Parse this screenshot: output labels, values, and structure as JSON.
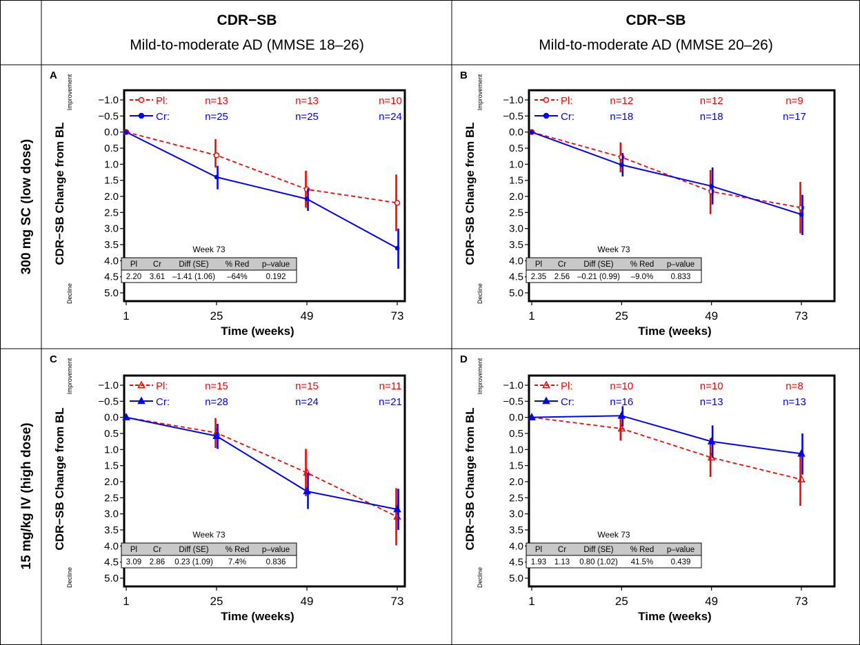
{
  "column_headers": [
    {
      "title": "CDR−SB",
      "subtitle": "Mild-to-moderate AD (MMSE 18–26)"
    },
    {
      "title": "CDR−SB",
      "subtitle": "Mild-to-moderate AD (MMSE 20–26)"
    }
  ],
  "row_headers": [
    "300 mg SC (low dose)",
    "15 mg/kg IV (high dose)"
  ],
  "colors": {
    "placebo": "#ff0000",
    "crenezumab": "#0000ff",
    "table_header_bg": "#c8c8c8"
  },
  "chart_data": [
    {
      "panel": "A",
      "type": "line",
      "ylabel": "CDR−SB Change from BL",
      "xlabel": "Time (weeks)",
      "improvement_label": "Improvement",
      "decline_label": "Decline",
      "y_reversed": true,
      "ylim": [
        -1.0,
        5.0
      ],
      "yticks": [
        "−1.0",
        "−0.5",
        "0.0",
        "0.5",
        "1.0",
        "1.5",
        "2.0",
        "2.5",
        "3.0",
        "3.5",
        "4.0",
        "4.5",
        "5.0"
      ],
      "x": [
        1,
        25,
        49,
        73
      ],
      "xticks": [
        "1",
        "25",
        "49",
        "73"
      ],
      "marker": "circle",
      "series": [
        {
          "name": "Pl:",
          "style": "dashed",
          "color": "#ff0000",
          "values": [
            0.0,
            0.72,
            1.78,
            2.2
          ],
          "err": [
            [
              0,
              0
            ],
            [
              0.22,
              1.1
            ],
            [
              1.2,
              2.35
            ],
            [
              1.32,
              3.08
            ]
          ],
          "n": [
            "n=13",
            "n=13",
            "n=10"
          ]
        },
        {
          "name": "Cr:",
          "style": "solid",
          "color": "#0000ff",
          "values": [
            0.0,
            1.4,
            2.08,
            3.61
          ],
          "err": [
            [
              0,
              0
            ],
            [
              1.05,
              1.78
            ],
            [
              1.75,
              2.45
            ],
            [
              3.0,
              4.25
            ]
          ],
          "n": [
            "n=25",
            "n=25",
            "n=24"
          ]
        }
      ],
      "table": {
        "caption": "Week 73",
        "headers": [
          "Pl",
          "Cr",
          "Diff (SE)",
          "% Red",
          "p–value"
        ],
        "values": [
          "2.20",
          "3.61",
          "–1.41 (1.06)",
          "–64%",
          "0.192"
        ]
      }
    },
    {
      "panel": "B",
      "type": "line",
      "ylabel": "CDR−SB Change from BL",
      "xlabel": "Time (weeks)",
      "improvement_label": "Improvement",
      "decline_label": "Decline",
      "y_reversed": true,
      "ylim": [
        -1.0,
        5.0
      ],
      "yticks": [
        "−1.0",
        "−0.5",
        "0.0",
        "0.5",
        "1.0",
        "1.5",
        "2.0",
        "2.5",
        "3.0",
        "3.5",
        "4.0",
        "4.5",
        "5.0"
      ],
      "x": [
        1,
        25,
        49,
        73
      ],
      "xticks": [
        "1",
        "25",
        "49",
        "73"
      ],
      "marker": "circle",
      "series": [
        {
          "name": "Pl:",
          "style": "dashed",
          "color": "#ff0000",
          "values": [
            0.0,
            0.78,
            1.85,
            2.35
          ],
          "err": [
            [
              0,
              0
            ],
            [
              0.32,
              1.25
            ],
            [
              1.18,
              2.55
            ],
            [
              1.55,
              3.15
            ]
          ],
          "n": [
            "n=12",
            "n=12",
            "n=9"
          ]
        },
        {
          "name": "Cr:",
          "style": "solid",
          "color": "#0000ff",
          "values": [
            0.0,
            1.02,
            1.68,
            2.56
          ],
          "err": [
            [
              0,
              0
            ],
            [
              0.65,
              1.38
            ],
            [
              1.1,
              2.25
            ],
            [
              1.95,
              3.2
            ]
          ],
          "n": [
            "n=18",
            "n=18",
            "n=17"
          ]
        }
      ],
      "table": {
        "caption": "Week 73",
        "headers": [
          "Pl",
          "Cr",
          "Diff (SE)",
          "% Red",
          "p–value"
        ],
        "values": [
          "2.35",
          "2.56",
          "–0.21 (0.99)",
          "–9.0%",
          "0.833"
        ]
      }
    },
    {
      "panel": "C",
      "type": "line",
      "ylabel": "CDR−SB Change from BL",
      "xlabel": "Time (weeks)",
      "improvement_label": "Improvement",
      "decline_label": "Decline",
      "y_reversed": true,
      "ylim": [
        -1.0,
        5.0
      ],
      "yticks": [
        "−1.0",
        "−0.5",
        "0.0",
        "0.5",
        "1.0",
        "1.5",
        "2.0",
        "2.5",
        "3.0",
        "3.5",
        "4.0",
        "4.5",
        "5.0"
      ],
      "x": [
        1,
        25,
        49,
        73
      ],
      "xticks": [
        "1",
        "25",
        "49",
        "73"
      ],
      "marker": "triangle",
      "series": [
        {
          "name": "Pl:",
          "style": "dashed",
          "color": "#ff0000",
          "values": [
            0.0,
            0.48,
            1.72,
            3.09
          ],
          "err": [
            [
              0,
              0
            ],
            [
              0.02,
              0.95
            ],
            [
              0.98,
              2.45
            ],
            [
              2.2,
              3.98
            ]
          ],
          "n": [
            "n=15",
            "n=15",
            "n=11"
          ]
        },
        {
          "name": "Cr:",
          "style": "solid",
          "color": "#0000ff",
          "values": [
            0.0,
            0.58,
            2.3,
            2.86
          ],
          "err": [
            [
              0,
              0
            ],
            [
              0.2,
              0.98
            ],
            [
              1.72,
              2.85
            ],
            [
              2.22,
              3.5
            ]
          ],
          "n": [
            "n=28",
            "n=24",
            "n=21"
          ]
        }
      ],
      "table": {
        "caption": "Week 73",
        "headers": [
          "Pl",
          "Cr",
          "Diff (SE)",
          "% Red",
          "p–value"
        ],
        "values": [
          "3.09",
          "2.86",
          "0.23 (1.09)",
          "7.4%",
          "0.836"
        ]
      }
    },
    {
      "panel": "D",
      "type": "line",
      "ylabel": "CDR−SB Change from BL",
      "xlabel": "Time (weeks)",
      "improvement_label": "Improvement",
      "decline_label": "Decline",
      "y_reversed": true,
      "ylim": [
        -1.0,
        5.0
      ],
      "yticks": [
        "−1.0",
        "−0.5",
        "0.0",
        "0.5",
        "1.0",
        "1.5",
        "2.0",
        "2.5",
        "3.0",
        "3.5",
        "4.0",
        "4.5",
        "5.0"
      ],
      "x": [
        1,
        25,
        49,
        73
      ],
      "xticks": [
        "1",
        "25",
        "49",
        "73"
      ],
      "marker": "triangle",
      "series": [
        {
          "name": "Pl:",
          "style": "dashed",
          "color": "#ff0000",
          "values": [
            0.0,
            0.35,
            1.25,
            1.93
          ],
          "err": [
            [
              0,
              0
            ],
            [
              -0.02,
              0.72
            ],
            [
              0.65,
              1.85
            ],
            [
              1.1,
              2.75
            ]
          ],
          "n": [
            "n=10",
            "n=10",
            "n=8"
          ]
        },
        {
          "name": "Cr:",
          "style": "solid",
          "color": "#0000ff",
          "values": [
            0.0,
            -0.05,
            0.75,
            1.13
          ],
          "err": [
            [
              0,
              0
            ],
            [
              -0.35,
              0.28
            ],
            [
              0.25,
              1.25
            ],
            [
              0.5,
              1.78
            ]
          ],
          "n": [
            "n=16",
            "n=13",
            "n=13"
          ]
        }
      ],
      "table": {
        "caption": "Week 73",
        "headers": [
          "Pl",
          "Cr",
          "Diff (SE)",
          "% Red",
          "p–value"
        ],
        "values": [
          "1.93",
          "1.13",
          "0.80 (1.02)",
          "41.5%",
          "0.439"
        ]
      }
    }
  ]
}
